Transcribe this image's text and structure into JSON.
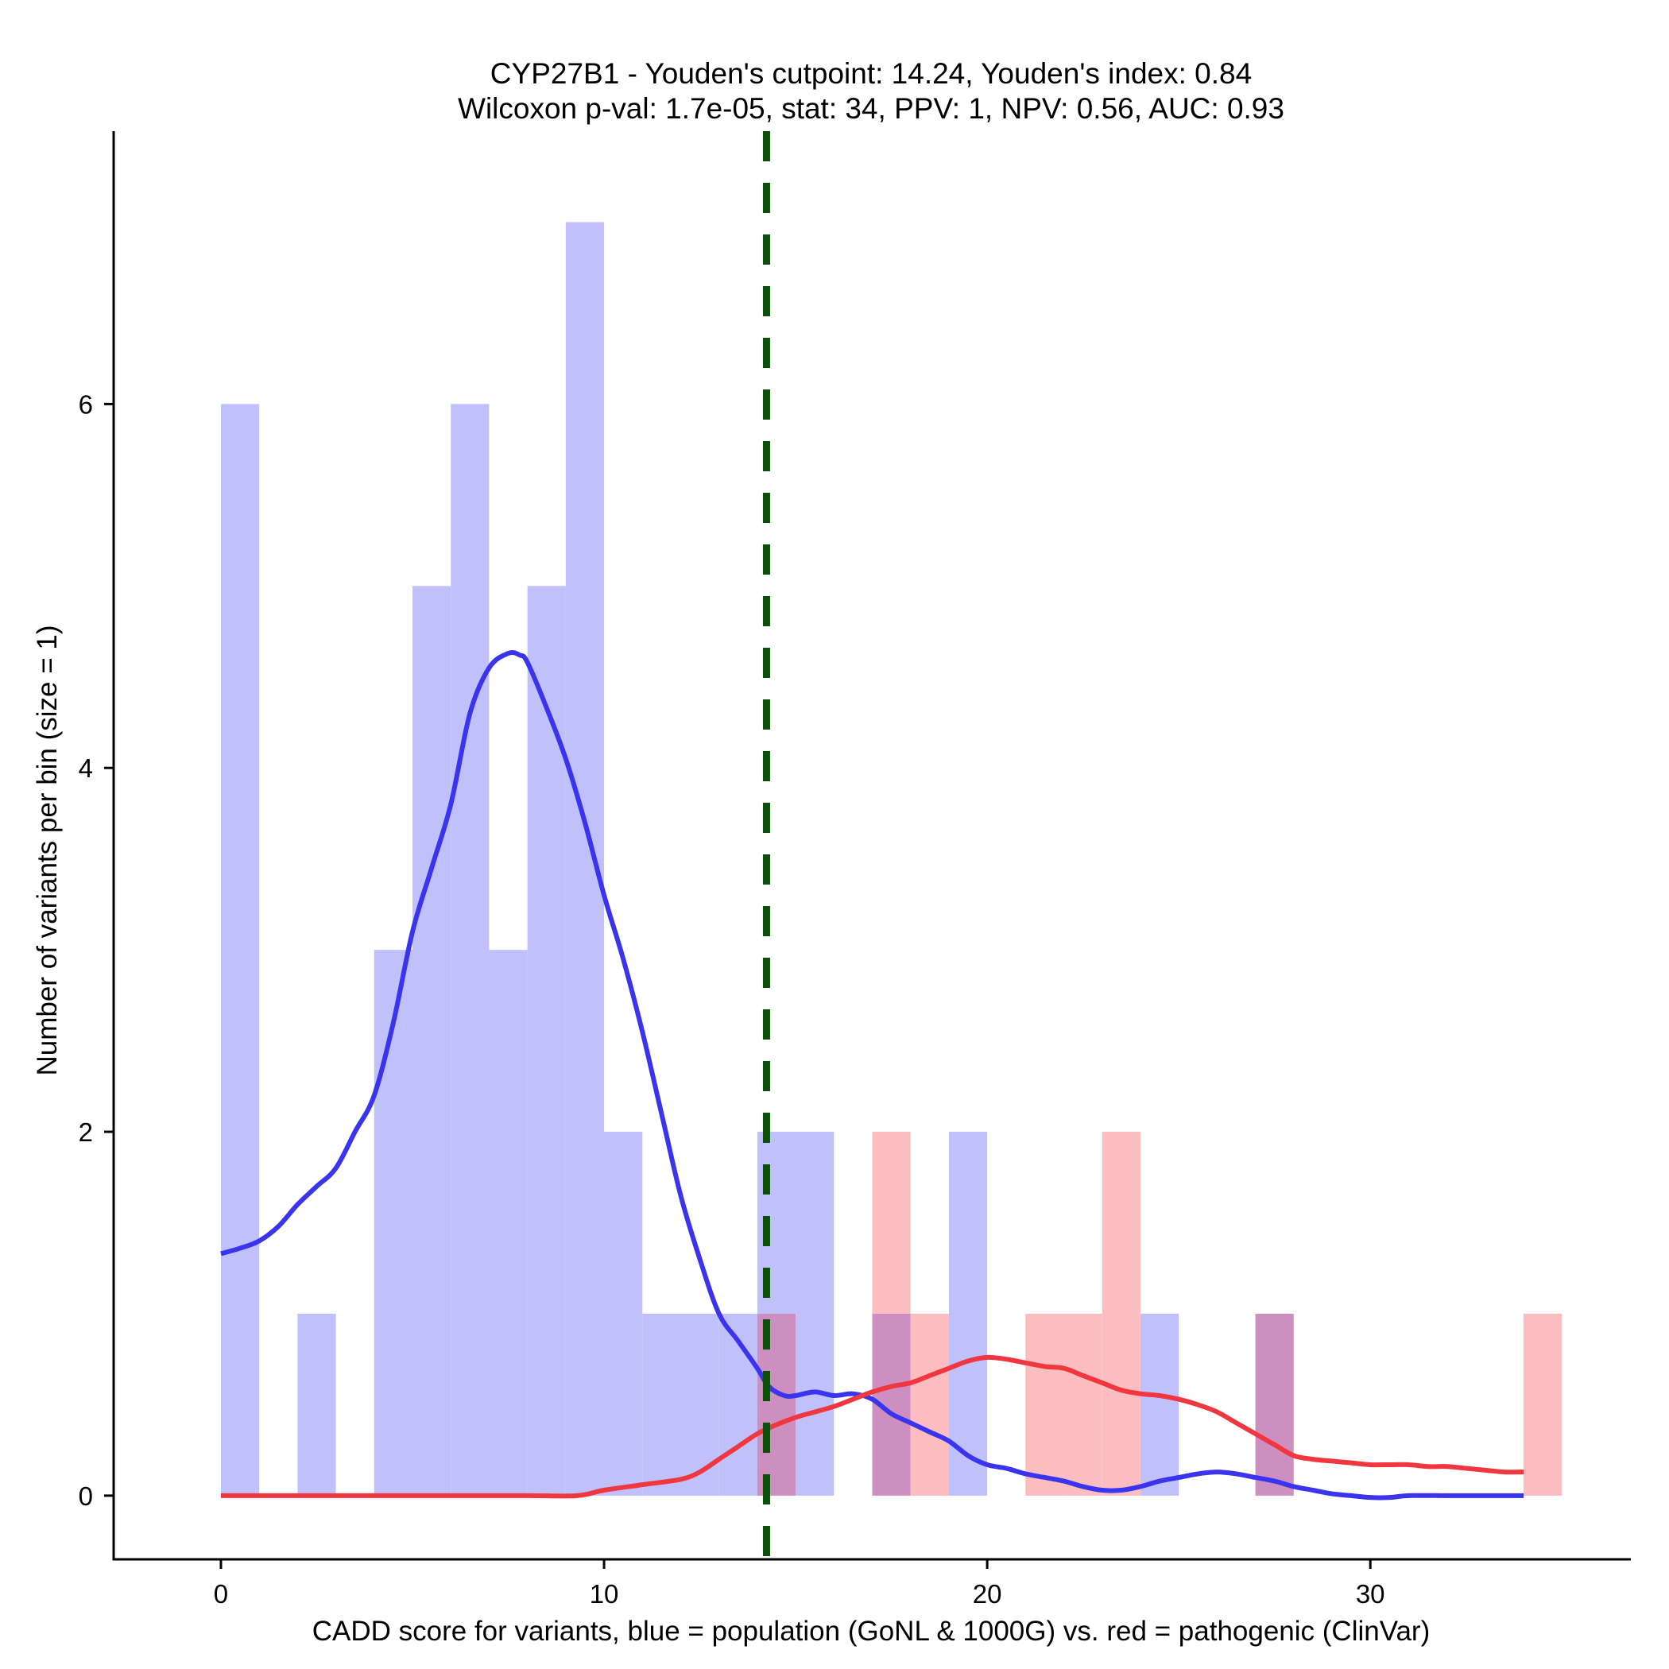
{
  "chart_data": {
    "type": "histogram",
    "title_line1": "CYP27B1 - Youden's cutpoint: 14.24, Youden's index: 0.84",
    "title_line2": "Wilcoxon p-val: 1.7e-05, stat: 34, PPV: 1, NPV: 0.56, AUC: 0.93",
    "xlabel": "CADD score for variants, blue = population (GoNL & 1000G) vs. red = pathogenic (ClinVar)",
    "ylabel": "Number of variants per bin (size = 1)",
    "xlim": [
      -2.8,
      36.8
    ],
    "ylim": [
      -0.35,
      7.5
    ],
    "x_ticks": [
      0,
      10,
      20,
      30
    ],
    "x_tick_labels": [
      "0",
      "10",
      "20",
      "30"
    ],
    "y_ticks": [
      0,
      2,
      4,
      6
    ],
    "y_tick_labels": [
      "0",
      "2",
      "4",
      "6"
    ],
    "bin_size": 1,
    "cutpoint": 14.24,
    "colors": {
      "population_bar": "#c0c0fb",
      "pathogenic_bar": "#fcbdc0",
      "overlap_bar": "#cd8fc0",
      "population_line": "#3a34ee",
      "pathogenic_line": "#f0363f",
      "cutpoint_line": "#0b4f0b"
    },
    "series": [
      {
        "name": "population (GoNL & 1000G)",
        "bin_starts": [
          0,
          2,
          4,
          5,
          6,
          7,
          8,
          9,
          10,
          11,
          12,
          13,
          14,
          15,
          17,
          19,
          24,
          27
        ],
        "counts": [
          6,
          1,
          3,
          5,
          6,
          3,
          5,
          7,
          2,
          1,
          1,
          1,
          2,
          2,
          1,
          2,
          1,
          1
        ]
      },
      {
        "name": "pathogenic (ClinVar)",
        "bin_starts": [
          14,
          17,
          18,
          21,
          22,
          23,
          27,
          34
        ],
        "counts": [
          1,
          2,
          1,
          1,
          1,
          2,
          1,
          1
        ]
      }
    ],
    "density_population": {
      "x": [
        0,
        0.5,
        1,
        1.5,
        2,
        2.5,
        3,
        3.5,
        4,
        4.5,
        5,
        5.5,
        6,
        6.5,
        7,
        7.5,
        7.8,
        8,
        8.5,
        9,
        9.5,
        10,
        10.5,
        11,
        11.5,
        12,
        12.5,
        13,
        13.5,
        14,
        14.3,
        14.7,
        15,
        15.5,
        16,
        16.5,
        17,
        17.5,
        18,
        18.5,
        19,
        19.5,
        20,
        20.5,
        21,
        21.5,
        22,
        22.5,
        23,
        23.5,
        24,
        24.5,
        25,
        25.5,
        26,
        26.5,
        27,
        27.5,
        28,
        28.5,
        29,
        29.5,
        30,
        30.5,
        31,
        32,
        33,
        34
      ],
      "y": [
        1.33,
        1.36,
        1.4,
        1.48,
        1.6,
        1.7,
        1.8,
        2.0,
        2.2,
        2.6,
        3.1,
        3.45,
        3.8,
        4.3,
        4.55,
        4.63,
        4.62,
        4.58,
        4.33,
        4.05,
        3.7,
        3.3,
        2.95,
        2.55,
        2.1,
        1.65,
        1.3,
        1.0,
        0.85,
        0.7,
        0.6,
        0.55,
        0.55,
        0.57,
        0.55,
        0.56,
        0.53,
        0.45,
        0.4,
        0.35,
        0.3,
        0.22,
        0.17,
        0.15,
        0.12,
        0.1,
        0.08,
        0.05,
        0.03,
        0.03,
        0.05,
        0.08,
        0.1,
        0.12,
        0.13,
        0.12,
        0.1,
        0.08,
        0.05,
        0.03,
        0.01,
        0.0,
        -0.01,
        -0.01,
        0.0,
        0.0,
        0.0,
        0.0
      ]
    },
    "density_pathogenic": {
      "x": [
        0,
        2,
        4,
        6,
        8,
        9.3,
        10,
        11,
        12,
        12.5,
        13,
        13.5,
        14,
        14.5,
        15,
        15.5,
        16,
        16.5,
        17,
        17.5,
        18,
        18.5,
        19,
        19.5,
        20,
        20.5,
        21,
        21.5,
        22,
        22.5,
        23,
        23.5,
        24,
        24.5,
        25,
        25.5,
        26,
        26.5,
        27,
        27.5,
        28,
        28.5,
        29,
        29.5,
        30,
        30.5,
        31,
        31.5,
        32,
        32.5,
        33,
        33.5,
        34
      ],
      "y": [
        0,
        0,
        0,
        0,
        0,
        0,
        0.03,
        0.06,
        0.09,
        0.13,
        0.2,
        0.27,
        0.34,
        0.39,
        0.43,
        0.46,
        0.49,
        0.53,
        0.57,
        0.6,
        0.62,
        0.66,
        0.7,
        0.74,
        0.76,
        0.75,
        0.73,
        0.71,
        0.7,
        0.66,
        0.62,
        0.58,
        0.56,
        0.55,
        0.53,
        0.5,
        0.46,
        0.4,
        0.34,
        0.28,
        0.22,
        0.2,
        0.19,
        0.18,
        0.17,
        0.17,
        0.17,
        0.16,
        0.16,
        0.15,
        0.14,
        0.13,
        0.13
      ]
    }
  }
}
